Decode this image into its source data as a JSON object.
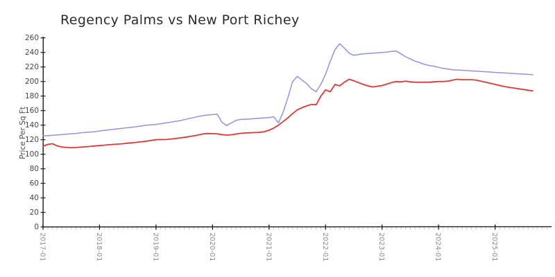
{
  "page": {
    "background": "#ffffff"
  },
  "chart_data": {
    "type": "line",
    "title": "Regency Palms vs New Port Richey",
    "xlabel": "",
    "ylabel": "Price Per Sq Ft",
    "ylim": [
      0,
      260
    ],
    "y_tick_step": 20,
    "y_tick_labels": [
      "0",
      "20",
      "40",
      "60",
      "80",
      "100",
      "120",
      "140",
      "160",
      "180",
      "200",
      "220",
      "240",
      "260"
    ],
    "x_tick_labels": [
      "2017-01",
      "2018-01",
      "2019-01",
      "2020-01",
      "2021-01",
      "2022-01",
      "2023-01",
      "2024-01",
      "2025-01"
    ],
    "x_minor_tick_interval": "monthly",
    "grid": false,
    "legend_position": "none",
    "style": "xkcd-sketch",
    "axis_color": "#1a1a1a",
    "minor_tick_color": "#c4c4c4",
    "categories": [
      "2017-01",
      "2017-02",
      "2017-03",
      "2017-04",
      "2017-05",
      "2017-06",
      "2017-07",
      "2017-08",
      "2017-09",
      "2017-10",
      "2017-11",
      "2017-12",
      "2018-01",
      "2018-02",
      "2018-03",
      "2018-04",
      "2018-05",
      "2018-06",
      "2018-07",
      "2018-08",
      "2018-09",
      "2018-10",
      "2018-11",
      "2018-12",
      "2019-01",
      "2019-02",
      "2019-03",
      "2019-04",
      "2019-05",
      "2019-06",
      "2019-07",
      "2019-08",
      "2019-09",
      "2019-10",
      "2019-11",
      "2019-12",
      "2020-01",
      "2020-02",
      "2020-03",
      "2020-04",
      "2020-05",
      "2020-06",
      "2020-07",
      "2020-08",
      "2020-09",
      "2020-10",
      "2020-11",
      "2020-12",
      "2021-01",
      "2021-02",
      "2021-03",
      "2021-04",
      "2021-05",
      "2021-06",
      "2021-07",
      "2021-08",
      "2021-09",
      "2021-10",
      "2021-11",
      "2021-12",
      "2022-01",
      "2022-02",
      "2022-03",
      "2022-04",
      "2022-05",
      "2022-06",
      "2022-07",
      "2022-08",
      "2022-09",
      "2022-10",
      "2022-11",
      "2022-12",
      "2023-01",
      "2023-02",
      "2023-03",
      "2023-04",
      "2023-05",
      "2023-06",
      "2023-07",
      "2023-08",
      "2023-09",
      "2023-10",
      "2023-11",
      "2023-12",
      "2024-01",
      "2024-02",
      "2024-03",
      "2024-04",
      "2024-05",
      "2024-06",
      "2024-07",
      "2024-08",
      "2024-09",
      "2024-10",
      "2024-11",
      "2024-12",
      "2025-01",
      "2025-02",
      "2025-03",
      "2025-04",
      "2025-05",
      "2025-06",
      "2025-07",
      "2025-08",
      "2025-09"
    ],
    "series": [
      {
        "name": "Regency Palms",
        "color": "#9191e0",
        "stroke_width": 1.5,
        "values": [
          125,
          125.5,
          126,
          126.5,
          127,
          127.5,
          128,
          128.5,
          129.5,
          130,
          130.5,
          131,
          132,
          132.8,
          133.5,
          134.2,
          135,
          135.8,
          136.5,
          137.2,
          138,
          139,
          140,
          140.5,
          141,
          142,
          143,
          144,
          145,
          146,
          147.5,
          149,
          150.5,
          152,
          153,
          154,
          154.5,
          155,
          144,
          139.5,
          143,
          146.5,
          148,
          148,
          148.5,
          149,
          149.5,
          150,
          150.5,
          151.5,
          143,
          158,
          178,
          200,
          207,
          202,
          197,
          190,
          186,
          196,
          210,
          228,
          244,
          252,
          246,
          239,
          236,
          237,
          238,
          238.5,
          239,
          239.5,
          240,
          240.5,
          241.5,
          242,
          238,
          234,
          231,
          228,
          226,
          223.5,
          222,
          221,
          219.5,
          218,
          217,
          216.2,
          215.8,
          215.4,
          215,
          214.6,
          214.2,
          213.8,
          213.4,
          213,
          212.5,
          212.2,
          211.8,
          211.4,
          211,
          210.6,
          210.2,
          209.8,
          209.4
        ]
      },
      {
        "name": "New Port Richey",
        "color": "#e63333",
        "stroke_width": 1.8,
        "values": [
          111,
          113.5,
          114.5,
          111.5,
          110,
          109.3,
          109,
          109.2,
          109.8,
          110.3,
          110.8,
          111.3,
          112,
          112.5,
          113,
          113.5,
          114,
          114.5,
          115.2,
          115.8,
          116.5,
          117.2,
          118,
          119,
          120,
          120.3,
          120.2,
          120.8,
          121.5,
          122.3,
          123.2,
          124.2,
          125.3,
          126.5,
          128,
          128.5,
          128.3,
          128,
          127,
          126.3,
          126.8,
          127.8,
          128.8,
          129.3,
          129.5,
          129.8,
          130,
          131,
          133,
          136,
          140,
          145,
          150,
          156,
          161,
          164,
          166.5,
          168.5,
          168,
          180,
          188.5,
          186,
          196,
          194,
          199,
          203,
          201,
          198.5,
          196,
          194,
          192.5,
          193.5,
          194.5,
          196.5,
          198.5,
          200,
          199.5,
          200.5,
          199.5,
          199,
          199,
          199,
          199,
          199.5,
          200,
          200,
          200.5,
          202,
          203,
          202.5,
          202.5,
          202.5,
          202,
          200.5,
          199,
          197.5,
          196,
          194.5,
          193,
          192,
          191,
          190,
          189,
          188,
          187
        ]
      }
    ]
  }
}
